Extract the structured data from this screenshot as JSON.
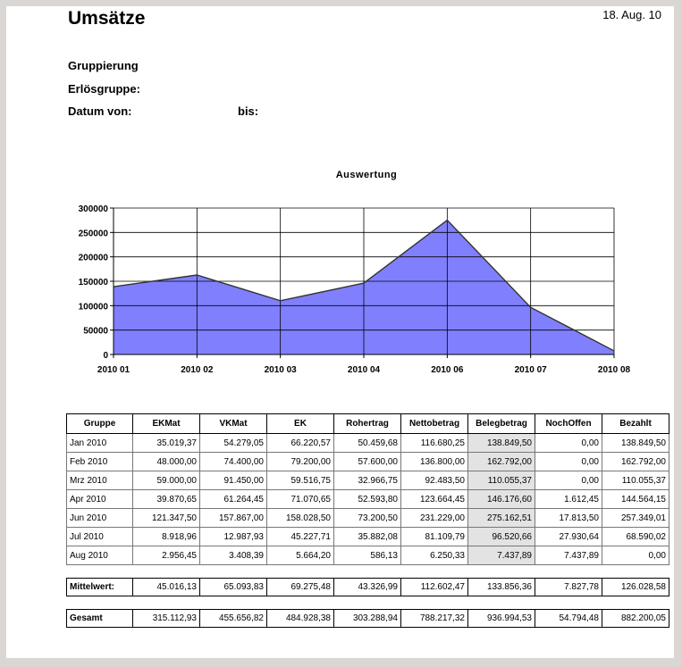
{
  "header": {
    "title": "Umsätze",
    "date": "18. Aug. 10",
    "gruppierung_label": "Gruppierung",
    "erloesgruppe_label": "Erlösgruppe:",
    "datum_von_label": "Datum von:",
    "bis_label": "bis:"
  },
  "chart_data": {
    "type": "area",
    "title": "Auswertung",
    "categories": [
      "2010 01",
      "2010 02",
      "2010 03",
      "2010 04",
      "2010 06",
      "2010 07",
      "2010 08"
    ],
    "values": [
      138849.5,
      162792.0,
      110055.37,
      146176.6,
      275162.51,
      96520.66,
      7437.89
    ],
    "yticks": [
      "300000",
      "250000",
      "200000",
      "150000",
      "100000",
      "50000",
      "0"
    ],
    "ylim": [
      0,
      300000
    ],
    "grid": true,
    "fill_color": "#8080ff",
    "line_color": "#333333"
  },
  "table": {
    "columns": [
      "Gruppe",
      "EKMat",
      "VKMat",
      "EK",
      "Rohertrag",
      "Nettobetrag",
      "Belegbetrag",
      "NochOffen",
      "Bezahlt"
    ],
    "rows": [
      [
        "Jan 2010",
        "35.019,37",
        "54.279,05",
        "66.220,57",
        "50.459,68",
        "116.680,25",
        "138.849,50",
        "0,00",
        "138.849,50"
      ],
      [
        "Feb 2010",
        "48.000,00",
        "74.400,00",
        "79.200,00",
        "57.600,00",
        "136.800,00",
        "162.792,00",
        "0,00",
        "162.792,00"
      ],
      [
        "Mrz 2010",
        "59.000,00",
        "91.450,00",
        "59.516,75",
        "32.966,75",
        "92.483,50",
        "110.055,37",
        "0,00",
        "110.055,37"
      ],
      [
        "Apr 2010",
        "39.870,65",
        "61.264,45",
        "71.070,65",
        "52.593,80",
        "123.664,45",
        "146.176,60",
        "1.612,45",
        "144.564,15"
      ],
      [
        "Jun 2010",
        "121.347,50",
        "157.867,00",
        "158.028,50",
        "73.200,50",
        "231.229,00",
        "275.162,51",
        "17.813,50",
        "257.349,01"
      ],
      [
        "Jul 2010",
        "8.918,96",
        "12.987,93",
        "45.227,71",
        "35.882,08",
        "81.109,79",
        "96.520,66",
        "27.930,64",
        "68.590,02"
      ],
      [
        "Aug 2010",
        "2.956,45",
        "3.408,39",
        "5.664,20",
        "586,13",
        "6.250,33",
        "7.437,89",
        "7.437,89",
        "0,00"
      ]
    ],
    "mittelwert": [
      "Mittelwert:",
      "45.016,13",
      "65.093,83",
      "69.275,48",
      "43.326,99",
      "112.602,47",
      "133.856,36",
      "7.827,78",
      "126.028,58"
    ],
    "gesamt": [
      "Gesamt",
      "315.112,93",
      "455.656,82",
      "484.928,38",
      "303.288,94",
      "788.217,32",
      "936.994,53",
      "54.794,48",
      "882.200,05"
    ],
    "highlight_color": "#e3e3e3"
  }
}
